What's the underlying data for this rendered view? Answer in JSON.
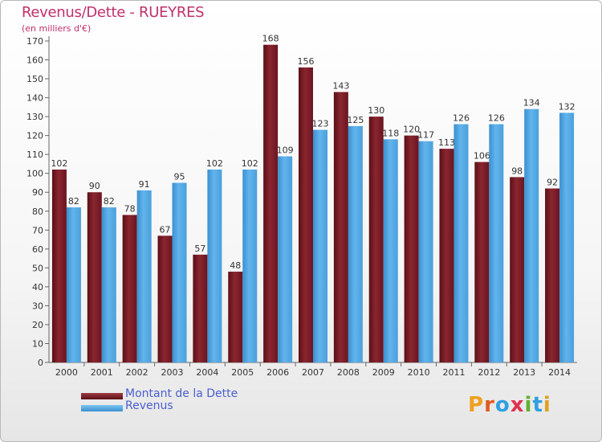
{
  "header": {
    "title": "Revenus/Dette - RUEYRES",
    "subtitle": "(en milliers d'€)"
  },
  "colors": {
    "dette": "#7a1a22",
    "revenus": "#4aa3e0",
    "title": "#c0306a",
    "legend_text": "#4a5fd0"
  },
  "legend": {
    "items": [
      {
        "label": "Montant de la Dette",
        "color": "#7a1a22"
      },
      {
        "label": "Revenus",
        "color": "#4aa3e0"
      }
    ]
  },
  "logo": {
    "text": "Proxiti",
    "letter_colors": [
      "#f0a020",
      "#e05a20",
      "#30a0e0",
      "#e03050",
      "#60b030",
      "#30a0e0",
      "#e0a020"
    ]
  },
  "chart_data": {
    "type": "bar",
    "title": "Revenus/Dette - RUEYRES",
    "subtitle": "(en milliers d'€)",
    "categories": [
      "2000",
      "2001",
      "2002",
      "2003",
      "2004",
      "2005",
      "2006",
      "2007",
      "2008",
      "2009",
      "2010",
      "2011",
      "2012",
      "2013",
      "2014"
    ],
    "series": [
      {
        "name": "Montant de la Dette",
        "values": [
          102,
          90,
          78,
          67,
          57,
          48,
          168,
          156,
          143,
          130,
          120,
          113,
          106,
          98,
          92
        ]
      },
      {
        "name": "Revenus",
        "values": [
          82,
          82,
          91,
          95,
          102,
          102,
          109,
          123,
          125,
          118,
          117,
          126,
          126,
          134,
          132
        ]
      }
    ],
    "ylim": [
      0,
      170
    ],
    "yticks": [
      0,
      10,
      20,
      30,
      40,
      50,
      60,
      70,
      80,
      90,
      100,
      110,
      120,
      130,
      140,
      150,
      160,
      170
    ],
    "grid": false,
    "legend_position": "bottom-left"
  }
}
